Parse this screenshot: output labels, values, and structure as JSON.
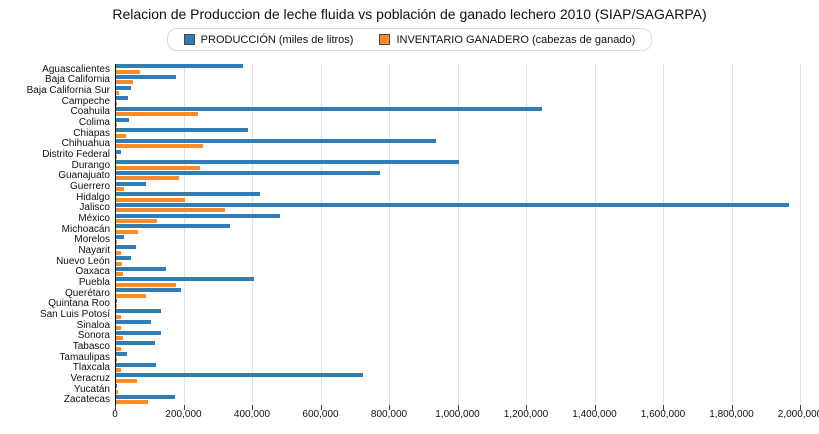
{
  "title": "Relacion de Produccion de leche fluida vs población de ganado lechero 2010 (SIAP/SAGARPA)",
  "colors": {
    "produccion": "#2e7cb8",
    "inventario": "#fd8a25",
    "gridline": "#e2e2e2",
    "axis": "#000000"
  },
  "legend": {
    "items": [
      {
        "label": "PRODUCCIÓN (miles de litros)",
        "color": "#2e7cb8"
      },
      {
        "label": "INVENTARIO GANADERO (cabezas de ganado)",
        "color": "#fd8a25"
      }
    ]
  },
  "chart_data": {
    "type": "bar",
    "orientation": "horizontal",
    "title": "Relacion de Produccion de leche fluida vs población de ganado lechero 2010 (SIAP/SAGARPA)",
    "xlabel": "",
    "ylabel": "",
    "xlim": [
      0,
      2000000
    ],
    "grid": true,
    "legend_position": "top",
    "x_tick_values": [
      0,
      200000,
      400000,
      600000,
      800000,
      1000000,
      1200000,
      1400000,
      1600000,
      1800000,
      2000000
    ],
    "x_tick_labels": [
      "0",
      "200,000",
      "400,000",
      "600,000",
      "800,000",
      "1,000,000",
      "1,200,000",
      "1,400,000",
      "1,600,000",
      "1,800,000",
      "2,000,000"
    ],
    "categories": [
      "Aguascalientes",
      "Baja California",
      "Baja California Sur",
      "Campeche",
      "Coahuila",
      "Colima",
      "Chiapas",
      "Chihuahua",
      "Distrito Federal",
      "Durango",
      "Guanajuato",
      "Guerrero",
      "Hidalgo",
      "Jalisco",
      "México",
      "Michoacán",
      "Morelos",
      "Nayarit",
      "Nuevo León",
      "Oaxaca",
      "Puebla",
      "Querétaro",
      "Quintana Roo",
      "San Luis Potosí",
      "Sinaloa",
      "Sonora",
      "Tabasco",
      "Tamaulipas",
      "Tlaxcala",
      "Veracruz",
      "Yucatán",
      "Zacatecas"
    ],
    "series": [
      {
        "name": "PRODUCCIÓN (miles de litros)",
        "color": "#2e7cb8",
        "values": [
          372000,
          175000,
          45000,
          36000,
          1243000,
          38000,
          385000,
          933000,
          15000,
          1000000,
          772000,
          87000,
          419000,
          1966000,
          478000,
          332000,
          22000,
          59000,
          43000,
          147000,
          404000,
          190000,
          3000,
          131000,
          103000,
          132000,
          113000,
          32000,
          116000,
          722000,
          2000,
          171000
        ]
      },
      {
        "name": "INVENTARIO GANADERO (cabezas de ganado)",
        "color": "#fd8a25",
        "values": [
          70000,
          49000,
          10000,
          4000,
          239000,
          3000,
          29000,
          253000,
          2000,
          245000,
          185000,
          23000,
          200000,
          318000,
          119000,
          64000,
          2000,
          16000,
          18000,
          21000,
          174000,
          89000,
          1000,
          16000,
          15000,
          19000,
          15000,
          2000,
          16000,
          62000,
          6000,
          94000
        ]
      }
    ]
  }
}
